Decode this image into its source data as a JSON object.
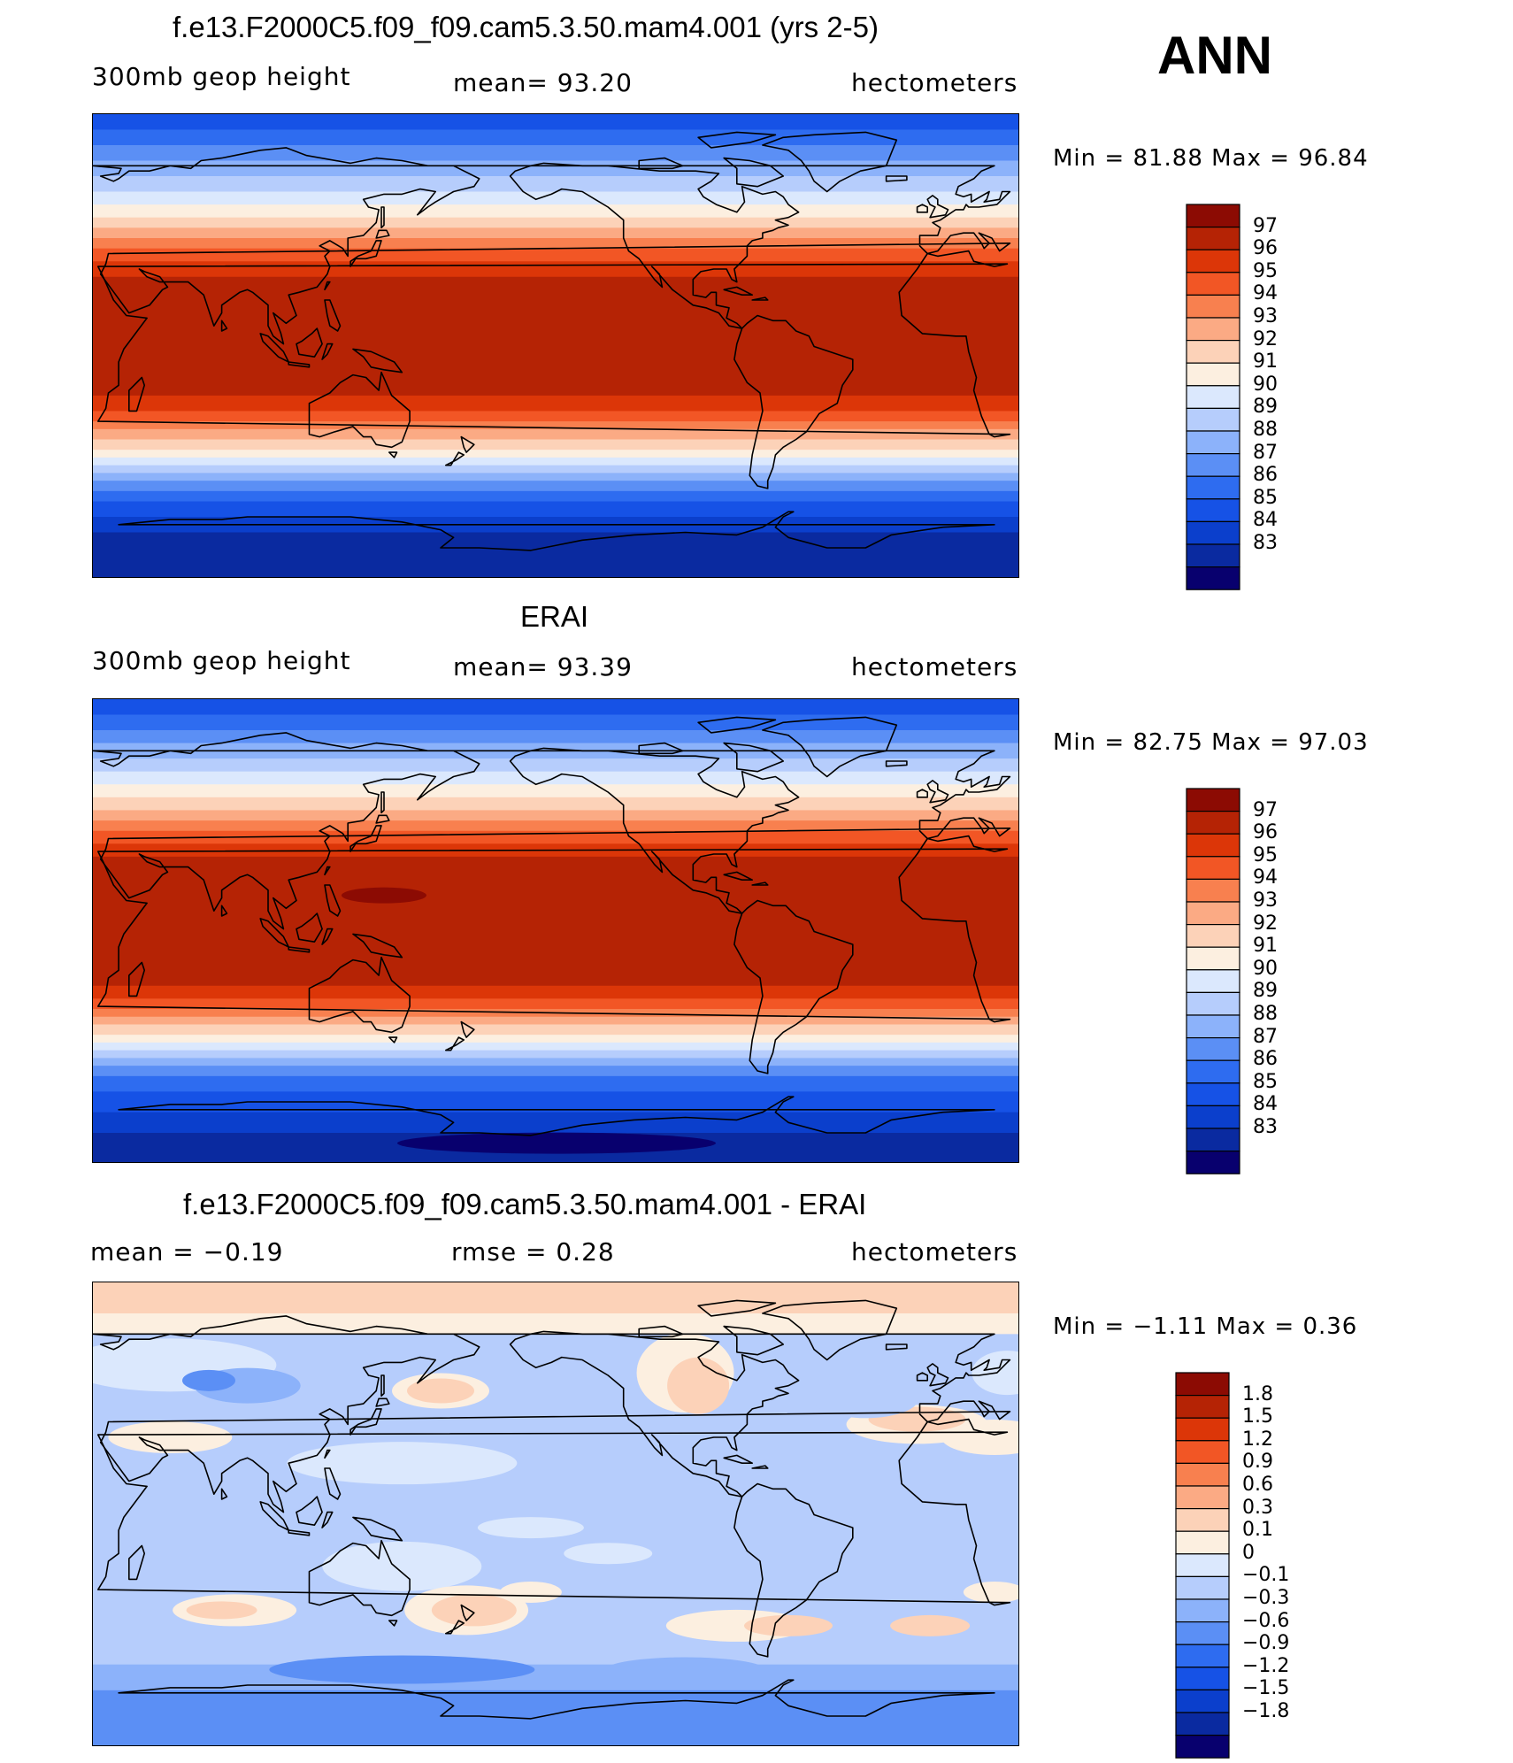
{
  "season": "ANN",
  "colors": {
    "abs": [
      "#08006e",
      "#0a2aa0",
      "#0b3fcc",
      "#1652e6",
      "#2e6cf0",
      "#5b8ff5",
      "#8cb2fa",
      "#b6cdfc",
      "#dbe8fd",
      "#fcefe0",
      "#fcd2b8",
      "#fbaa84",
      "#f8804f",
      "#f25625",
      "#dc3608",
      "#b52305",
      "#8c0b03"
    ],
    "diff": [
      "#08006e",
      "#0a2aa0",
      "#0b3fcc",
      "#1652e6",
      "#2e6cf0",
      "#5b8ff5",
      "#8cb2fa",
      "#b6cdfc",
      "#dbe8fd",
      "#fcefe0",
      "#fcd2b8",
      "#fbaa84",
      "#f8804f",
      "#f25625",
      "#dc3608",
      "#b52305",
      "#8c0b03"
    ]
  },
  "panels": [
    {
      "title": "f.e13.F2000C5.f09_f09.cam5.3.50.mam4.001 (yrs 2-5)",
      "left_label": "300mb  geop  height",
      "center_label": "mean=   93.20",
      "right_label": "hectometers",
      "minmax": "Min  =    81.88  Max  =    96.84",
      "levels": [
        "97",
        "96",
        "95",
        "94",
        "93",
        "92",
        "91",
        "90",
        "89",
        "88",
        "87",
        "86",
        "85",
        "84",
        "83"
      ]
    },
    {
      "title": "ERAI",
      "left_label": "300mb  geop  height",
      "center_label": "mean=   93.39",
      "right_label": "hectometers",
      "minmax": "Min  =    82.75  Max  =    97.03",
      "levels": [
        "97",
        "96",
        "95",
        "94",
        "93",
        "92",
        "91",
        "90",
        "89",
        "88",
        "87",
        "86",
        "85",
        "84",
        "83"
      ]
    },
    {
      "title": "f.e13.F2000C5.f09_f09.cam5.3.50.mam4.001 - ERAI",
      "left_label": "mean  =    −0.19",
      "center_label": "rmse  =     0.28",
      "right_label": "hectometers",
      "minmax": "Min  =    −1.11  Max  =      0.36",
      "levels": [
        "1.8",
        "1.5",
        "1.2",
        "0.9",
        "0.6",
        "0.3",
        "0.1",
        "0",
        "−0.1",
        "−0.3",
        "−0.6",
        "−0.9",
        "−1.2",
        "−1.5",
        "−1.8"
      ]
    }
  ]
}
